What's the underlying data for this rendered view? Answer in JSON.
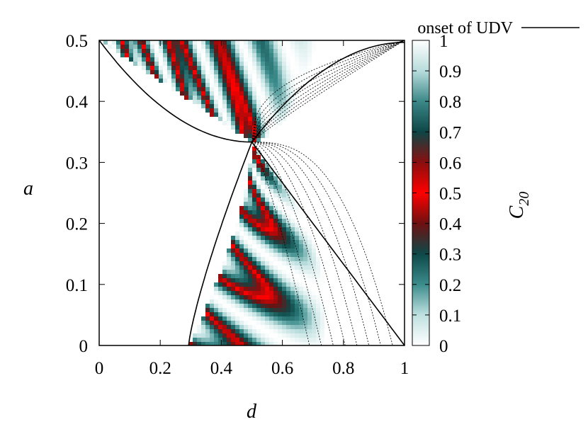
{
  "chart_data": {
    "type": "heatmap",
    "xlabel": "d",
    "ylabel": "a",
    "xlim": [
      0,
      1
    ],
    "ylim": [
      0,
      0.5
    ],
    "x_ticks": [
      "0",
      "0.2",
      "0.4",
      "0.6",
      "0.8",
      "1"
    ],
    "y_ticks": [
      "0",
      "0.1",
      "0.2",
      "0.3",
      "0.4",
      "0.5"
    ],
    "x_tick_values": [
      0,
      0.2,
      0.4,
      0.6,
      0.8,
      1
    ],
    "y_tick_values": [
      0,
      0.1,
      0.2,
      0.3,
      0.4,
      0.5
    ],
    "colorbar": {
      "label_main": "C",
      "label_sub": "20",
      "range": [
        0,
        1
      ],
      "ticks": [
        "0",
        "0.1",
        "0.2",
        "0.3",
        "0.4",
        "0.5",
        "0.6",
        "0.7",
        "0.8",
        "0.9",
        "1"
      ],
      "tick_values": [
        0,
        0.1,
        0.2,
        0.3,
        0.4,
        0.5,
        0.6,
        0.7,
        0.8,
        0.9,
        1
      ],
      "palette": [
        {
          "v": 0.0,
          "color": "#ffffff"
        },
        {
          "v": 0.1,
          "color": "#bfe0e0"
        },
        {
          "v": 0.2,
          "color": "#3c8c8c"
        },
        {
          "v": 0.3,
          "color": "#0d4848"
        },
        {
          "v": 0.4,
          "color": "#6e1010"
        },
        {
          "v": 0.5,
          "color": "#ff0000"
        },
        {
          "v": 0.6,
          "color": "#8a0e0e"
        },
        {
          "v": 0.7,
          "color": "#0d4646"
        },
        {
          "v": 0.8,
          "color": "#3c8888"
        },
        {
          "v": 0.9,
          "color": "#b8dcdc"
        },
        {
          "v": 1.0,
          "color": "#ffffff"
        }
      ]
    },
    "legend": {
      "entry": "onset of UDV",
      "position": "top-right"
    },
    "boundary_curves": {
      "onset_of_udv": {
        "note_points": [
          [
            0,
            0.5
          ],
          [
            0.5,
            0.3333
          ],
          [
            1,
            0.5
          ]
        ],
        "lower_points": [
          [
            0.2929,
            0
          ],
          [
            0.5,
            0.3333
          ],
          [
            1,
            0
          ]
        ]
      },
      "crossing_point": [
        0.5,
        0.3333
      ]
    },
    "grid": false
  }
}
